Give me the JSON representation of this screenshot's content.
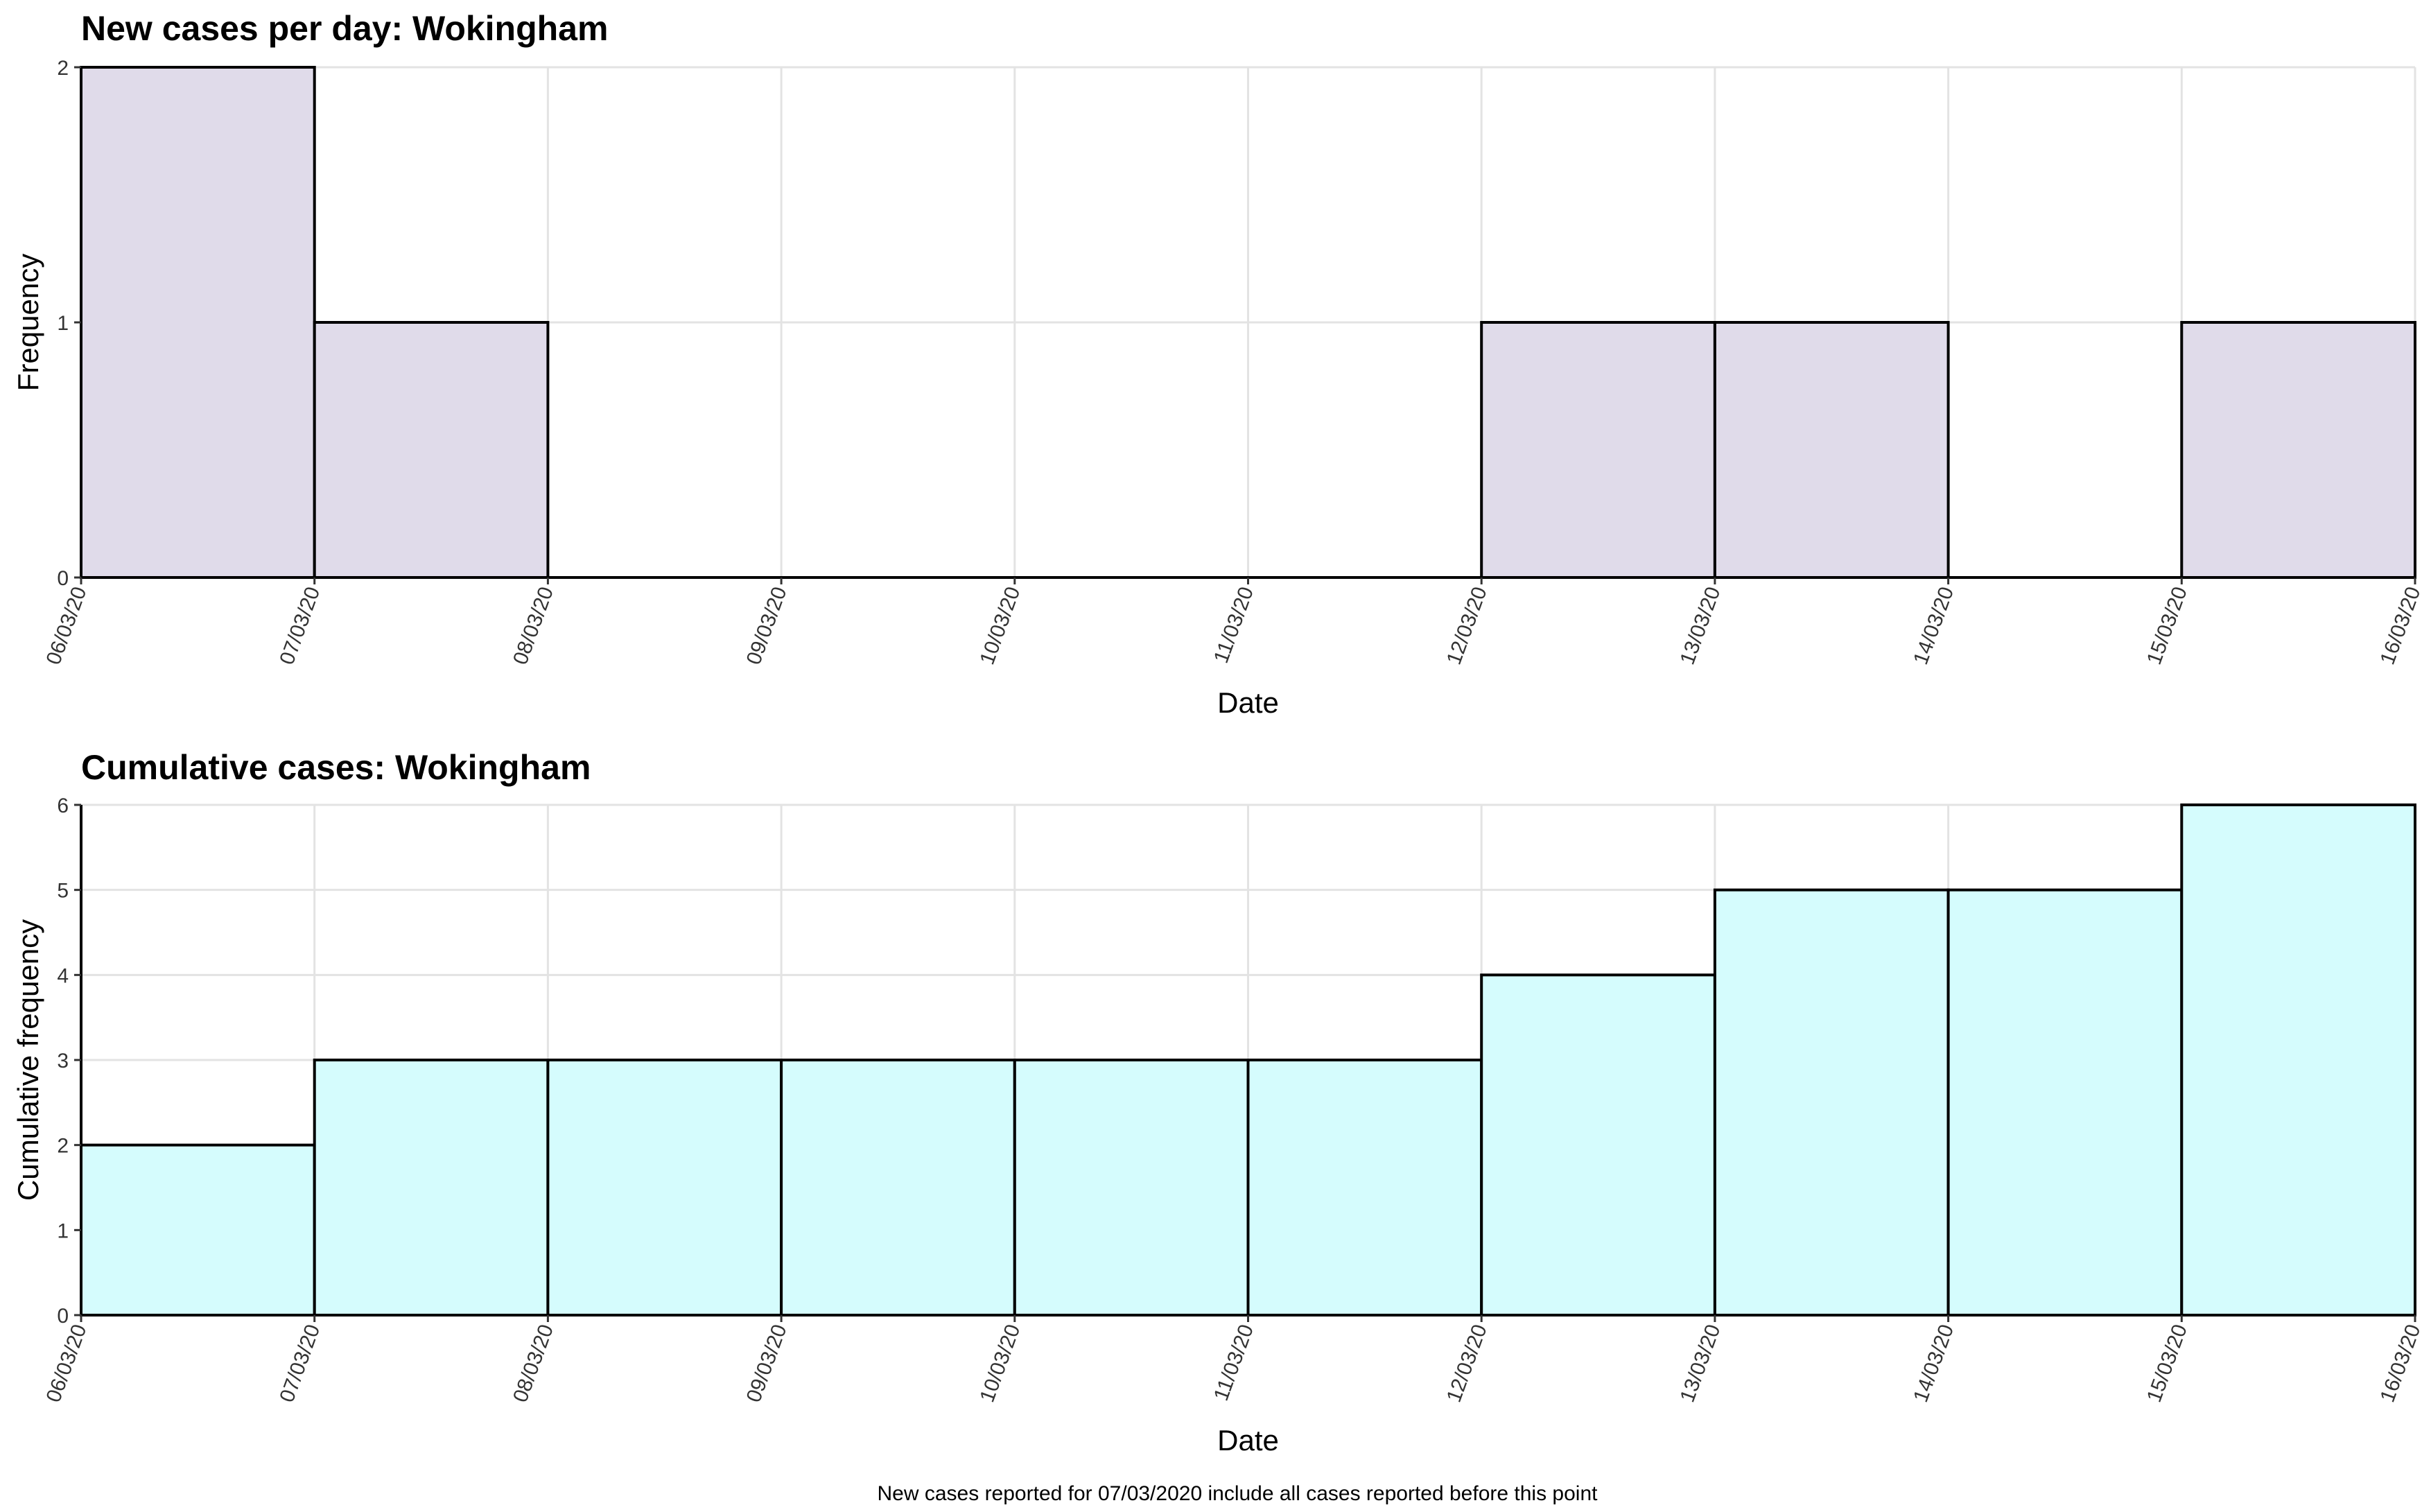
{
  "chart_data": [
    {
      "type": "bar",
      "title": "New cases per day: Wokingham",
      "xlabel": "Date",
      "ylabel": "Frequency",
      "categories": [
        "06/03/20",
        "07/03/20",
        "08/03/20",
        "09/03/20",
        "10/03/20",
        "11/03/20",
        "12/03/20",
        "13/03/20",
        "14/03/20",
        "15/03/20"
      ],
      "x_ticks": [
        "06/03/20",
        "07/03/20",
        "08/03/20",
        "09/03/20",
        "10/03/20",
        "11/03/20",
        "12/03/20",
        "13/03/20",
        "14/03/20",
        "15/03/20",
        "16/03/20"
      ],
      "values": [
        2,
        1,
        0,
        0,
        0,
        0,
        1,
        1,
        0,
        1
      ],
      "ylim": [
        0,
        2
      ],
      "y_ticks": [
        "0",
        "1",
        "2"
      ],
      "bar_color": "#e0dbea",
      "edge_color": "#000000",
      "grid": true
    },
    {
      "type": "bar",
      "title": "Cumulative cases: Wokingham",
      "xlabel": "Date",
      "ylabel": "Cumulative frequency",
      "categories": [
        "06/03/20",
        "07/03/20",
        "08/03/20",
        "09/03/20",
        "10/03/20",
        "11/03/20",
        "12/03/20",
        "13/03/20",
        "14/03/20",
        "15/03/20"
      ],
      "x_ticks": [
        "06/03/20",
        "07/03/20",
        "08/03/20",
        "09/03/20",
        "10/03/20",
        "11/03/20",
        "12/03/20",
        "13/03/20",
        "14/03/20",
        "15/03/20",
        "16/03/20"
      ],
      "values": [
        2,
        3,
        3,
        3,
        3,
        3,
        4,
        5,
        5,
        6
      ],
      "ylim": [
        0,
        6
      ],
      "y_ticks": [
        "0",
        "1",
        "2",
        "3",
        "4",
        "5",
        "6"
      ],
      "bar_color": "#d5fcfd",
      "edge_color": "#000000",
      "grid": true
    }
  ],
  "footnote": "New cases reported for 07/03/2020 include all cases reported before this point"
}
